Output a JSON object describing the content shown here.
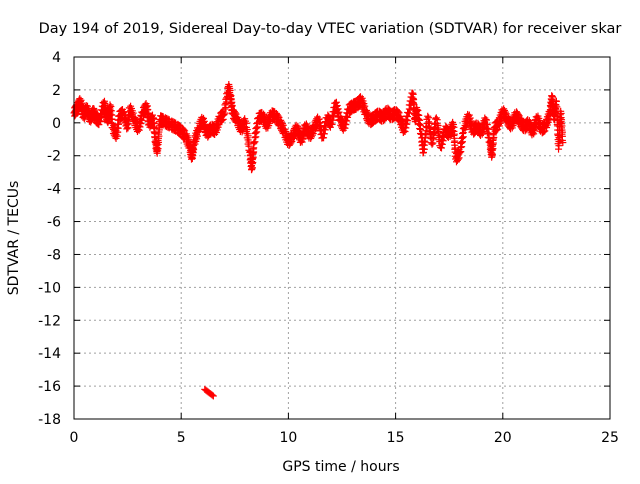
{
  "chart_data": {
    "type": "scatter",
    "title": "Day 194 of 2019, Sidereal Day-to-day VTEC variation (SDTVAR) for receiver skar",
    "xlabel": "GPS time / hours",
    "ylabel": "SDTVAR / TECUs",
    "xlim": [
      0,
      25
    ],
    "ylim": [
      -18,
      4
    ],
    "xticks": [
      0,
      5,
      10,
      15,
      20,
      25
    ],
    "yticks": [
      4,
      2,
      0,
      -2,
      -4,
      -6,
      -8,
      -10,
      -12,
      -14,
      -16,
      -18
    ],
    "grid": true,
    "marker": "+",
    "series_color": "#ff0000",
    "series": [
      {
        "name": "SDTVAR",
        "points": [
          [
            0.0,
            0.6
          ],
          [
            0.15,
            0.9
          ],
          [
            0.3,
            1.3
          ],
          [
            0.45,
            0.4
          ],
          [
            0.6,
            0.9
          ],
          [
            0.75,
            0.2
          ],
          [
            0.9,
            0.7
          ],
          [
            1.0,
            0.3
          ],
          [
            1.2,
            0.1
          ],
          [
            1.4,
            1.2
          ],
          [
            1.5,
            0.5
          ],
          [
            1.6,
            0.2
          ],
          [
            1.7,
            1.0
          ],
          [
            1.8,
            -0.3
          ],
          [
            2.0,
            -0.8
          ],
          [
            2.1,
            0.4
          ],
          [
            2.3,
            0.6
          ],
          [
            2.5,
            -0.3
          ],
          [
            2.6,
            0.9
          ],
          [
            2.8,
            0.2
          ],
          [
            3.0,
            -0.4
          ],
          [
            3.2,
            0.6
          ],
          [
            3.4,
            1.0
          ],
          [
            3.5,
            -0.1
          ],
          [
            3.7,
            0.3
          ],
          [
            3.8,
            -1.2
          ],
          [
            3.9,
            -1.7
          ],
          [
            4.0,
            0.2
          ],
          [
            4.2,
            0.1
          ],
          [
            4.5,
            -0.1
          ],
          [
            4.8,
            -0.3
          ],
          [
            5.0,
            -0.5
          ],
          [
            5.2,
            -0.8
          ],
          [
            5.4,
            -1.4
          ],
          [
            5.5,
            -2.1
          ],
          [
            5.6,
            -1.2
          ],
          [
            5.8,
            -0.4
          ],
          [
            6.0,
            0.2
          ],
          [
            6.2,
            -0.7
          ],
          [
            6.4,
            -0.3
          ],
          [
            6.6,
            -0.5
          ],
          [
            6.8,
            0.3
          ],
          [
            7.0,
            0.5
          ],
          [
            7.2,
            2.2
          ],
          [
            7.3,
            1.6
          ],
          [
            7.4,
            0.6
          ],
          [
            7.6,
            0.2
          ],
          [
            7.8,
            -0.4
          ],
          [
            8.0,
            0.1
          ],
          [
            8.2,
            -1.8
          ],
          [
            8.3,
            -2.8
          ],
          [
            8.4,
            -1.2
          ],
          [
            8.6,
            0.3
          ],
          [
            8.8,
            0.4
          ],
          [
            9.0,
            -0.2
          ],
          [
            9.2,
            0.5
          ],
          [
            9.4,
            0.4
          ],
          [
            9.6,
            0.0
          ],
          [
            9.8,
            -0.5
          ],
          [
            10.0,
            -1.2
          ],
          [
            10.2,
            -0.8
          ],
          [
            10.4,
            -0.3
          ],
          [
            10.6,
            -1.1
          ],
          [
            10.8,
            -0.2
          ],
          [
            11.0,
            -0.8
          ],
          [
            11.2,
            -0.3
          ],
          [
            11.4,
            0.2
          ],
          [
            11.6,
            -0.9
          ],
          [
            11.8,
            0.3
          ],
          [
            12.0,
            -0.1
          ],
          [
            12.2,
            1.2
          ],
          [
            12.4,
            0.2
          ],
          [
            12.6,
            -0.3
          ],
          [
            12.8,
            0.8
          ],
          [
            13.0,
            1.0
          ],
          [
            13.2,
            1.1
          ],
          [
            13.4,
            1.4
          ],
          [
            13.6,
            0.6
          ],
          [
            13.8,
            0.1
          ],
          [
            14.0,
            0.3
          ],
          [
            14.2,
            0.5
          ],
          [
            14.4,
            0.3
          ],
          [
            14.6,
            0.7
          ],
          [
            14.8,
            0.4
          ],
          [
            15.0,
            0.6
          ],
          [
            15.2,
            0.3
          ],
          [
            15.4,
            -0.5
          ],
          [
            15.6,
            0.6
          ],
          [
            15.8,
            1.8
          ],
          [
            15.9,
            0.2
          ],
          [
            16.0,
            0.8
          ],
          [
            16.2,
            -0.7
          ],
          [
            16.3,
            -1.8
          ],
          [
            16.5,
            0.4
          ],
          [
            16.7,
            -1.3
          ],
          [
            16.9,
            0.3
          ],
          [
            17.1,
            -1.5
          ],
          [
            17.3,
            -0.4
          ],
          [
            17.5,
            -0.7
          ],
          [
            17.7,
            -0.1
          ],
          [
            17.8,
            -2.2
          ],
          [
            18.0,
            -1.8
          ],
          [
            18.2,
            -0.3
          ],
          [
            18.4,
            0.4
          ],
          [
            18.6,
            -0.5
          ],
          [
            18.8,
            -0.2
          ],
          [
            19.0,
            -0.6
          ],
          [
            19.2,
            0.2
          ],
          [
            19.4,
            -1.2
          ],
          [
            19.5,
            -2.0
          ],
          [
            19.6,
            -0.3
          ],
          [
            19.8,
            -0.1
          ],
          [
            20.0,
            0.7
          ],
          [
            20.2,
            0.2
          ],
          [
            20.4,
            -0.2
          ],
          [
            20.6,
            0.5
          ],
          [
            20.8,
            0.1
          ],
          [
            21.0,
            -0.3
          ],
          [
            21.2,
            0.0
          ],
          [
            21.4,
            -0.6
          ],
          [
            21.6,
            0.3
          ],
          [
            21.8,
            -0.4
          ],
          [
            22.0,
            -0.2
          ],
          [
            22.2,
            0.6
          ],
          [
            22.3,
            1.6
          ],
          [
            22.4,
            0.2
          ],
          [
            22.5,
            1.3
          ],
          [
            22.6,
            -1.6
          ],
          [
            22.7,
            0.7
          ],
          [
            22.8,
            -1.2
          ]
        ]
      }
    ],
    "outlier_points": [
      [
        6.1,
        -16.2
      ],
      [
        6.3,
        -16.4
      ],
      [
        6.5,
        -16.6
      ]
    ]
  }
}
